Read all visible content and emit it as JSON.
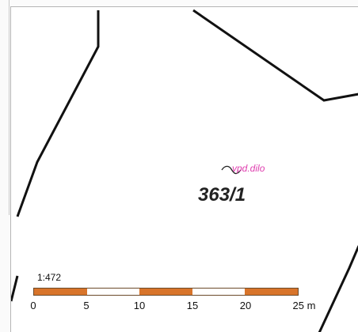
{
  "map": {
    "parcel_label": "363/1",
    "annotation_label": "vpd.dilo",
    "scale_ratio": "1:472"
  },
  "scale_bar": {
    "segment_colors": [
      "#d8742a",
      "#ffffff",
      "#d8742a",
      "#ffffff",
      "#d8742a"
    ],
    "ticks": [
      "0",
      "5",
      "10",
      "15",
      "20",
      "25 m"
    ]
  },
  "colors": {
    "boundary": "#111111",
    "annotation": "#e040b0",
    "scale_orange": "#d8742a"
  }
}
